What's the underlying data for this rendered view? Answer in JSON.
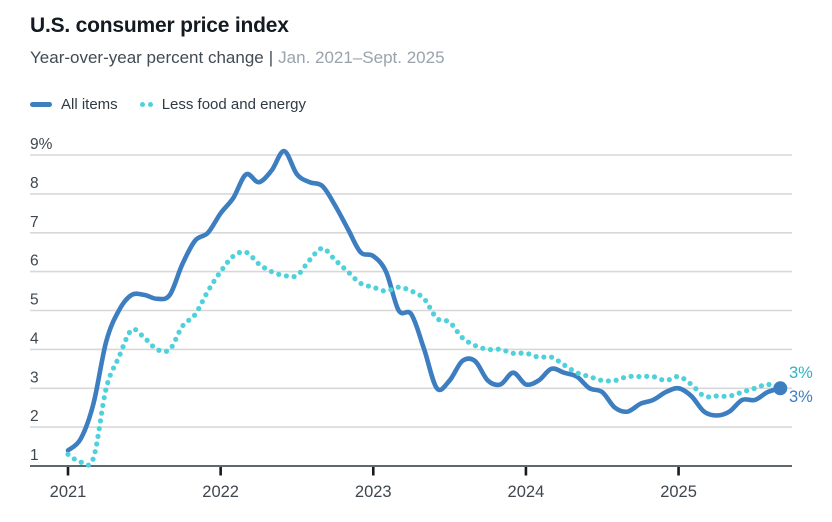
{
  "header": {
    "title": "U.S. consumer price index",
    "subtitle_main": "Year-over-year percent change",
    "subtitle_sep": "|",
    "subtitle_range": "Jan. 2021–Sept. 2025"
  },
  "legend": [
    {
      "label": "All items",
      "style": "solid"
    },
    {
      "label": "Less food and energy",
      "style": "dotted"
    }
  ],
  "end_labels": [
    {
      "text": "3%",
      "series": "Less food and energy"
    },
    {
      "text": "3%",
      "series": "All items"
    }
  ],
  "colors": {
    "all_items": "#3D7EC1",
    "core": "#4FD1DB",
    "core_label": "#2DB4C4",
    "grid": "#D8D8D8",
    "axis_line": "#4A5056",
    "tick": "#17191C",
    "axis_label": "#3E464E"
  },
  "chart_data": {
    "type": "line",
    "title": "U.S. consumer price index",
    "subtitle": "Year-over-year percent change | Jan. 2021–Sept. 2025",
    "x_unit": "month",
    "x_start": "2021-01",
    "x_end": "2025-09",
    "x_tick_labels": [
      "2021",
      "2022",
      "2023",
      "2024",
      "2025"
    ],
    "x_tick_month_indices": [
      0,
      12,
      24,
      36,
      48
    ],
    "y_tick_values": [
      9,
      8,
      7,
      6,
      5,
      4,
      3,
      2,
      1
    ],
    "y_tick_labels": [
      "9%",
      "8",
      "7",
      "6",
      "5",
      "4",
      "3",
      "2",
      "1"
    ],
    "ylim": [
      1,
      9
    ],
    "grid": "horizontal",
    "legend_position": "top-left",
    "series": [
      {
        "name": "All items",
        "style": "solid",
        "end_label": "3%",
        "values": [
          1.4,
          1.7,
          2.6,
          4.2,
          5.0,
          5.4,
          5.4,
          5.3,
          5.4,
          6.2,
          6.8,
          7.0,
          7.5,
          7.9,
          8.5,
          8.3,
          8.6,
          9.1,
          8.5,
          8.3,
          8.2,
          7.7,
          7.1,
          6.5,
          6.4,
          6.0,
          5.0,
          4.9,
          4.0,
          3.0,
          3.2,
          3.7,
          3.7,
          3.2,
          3.1,
          3.4,
          3.1,
          3.2,
          3.5,
          3.4,
          3.3,
          3.0,
          2.9,
          2.5,
          2.4,
          2.6,
          2.7,
          2.9,
          3.0,
          2.8,
          2.4,
          2.3,
          2.4,
          2.7,
          2.7,
          2.9,
          3.0
        ]
      },
      {
        "name": "Less food and energy",
        "style": "dotted",
        "end_label": "3%",
        "values": [
          1.3,
          1.1,
          1.2,
          3.0,
          3.8,
          4.5,
          4.3,
          4.0,
          4.0,
          4.6,
          4.9,
          5.5,
          6.0,
          6.4,
          6.5,
          6.2,
          6.0,
          5.9,
          5.9,
          6.3,
          6.6,
          6.3,
          6.0,
          5.7,
          5.6,
          5.5,
          5.6,
          5.5,
          5.3,
          4.8,
          4.7,
          4.3,
          4.1,
          4.0,
          4.0,
          3.9,
          3.9,
          3.8,
          3.8,
          3.6,
          3.4,
          3.3,
          3.2,
          3.2,
          3.3,
          3.3,
          3.3,
          3.2,
          3.3,
          3.1,
          2.8,
          2.8,
          2.8,
          2.9,
          3.0,
          3.1,
          3.0
        ]
      }
    ]
  }
}
